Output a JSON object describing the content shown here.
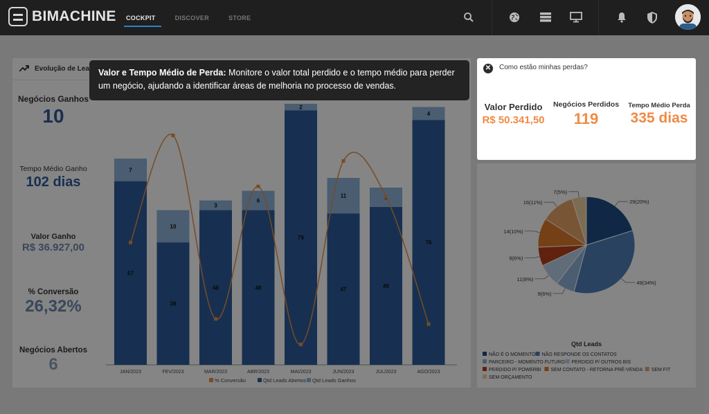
{
  "brand": {
    "name": "BIMACHINE"
  },
  "nav": [
    {
      "label": "COCKPIT",
      "active": true
    },
    {
      "label": "DISCOVER",
      "active": false
    },
    {
      "label": "STORE",
      "active": false
    }
  ],
  "dashboard": {
    "title": "Evolução de Leads",
    "kpis": [
      {
        "label": "Negócios Ganhos",
        "value": "10"
      },
      {
        "label": "Tempo Médio Ganho",
        "value": "102 dias"
      },
      {
        "label": "Valor Ganho",
        "value": "R$ 36.927,00"
      },
      {
        "label": "% Conversão",
        "value": "26,32%"
      },
      {
        "label": "Negócios Abertos",
        "value": "6"
      }
    ]
  },
  "tooltip": {
    "title": "Valor e Tempo Médio de Perda:",
    "body": "Monitore o valor total perdido e o tempo médio para perder um negócio, ajudando a identificar áreas de melhoria no processo de vendas."
  },
  "losses": {
    "question": "Como estão minhas perdas?",
    "items": [
      {
        "label": "Valor Perdido",
        "value": "R$ 50.341,50"
      },
      {
        "label": "Negócios Perdidos",
        "value": "119"
      },
      {
        "label": "Tempo Médio Perda",
        "value": "335 dias"
      }
    ]
  },
  "colors": {
    "abertos": "#2c5d9b",
    "ganhos": "#8fb3d9",
    "conversao": "#e4914a",
    "accent": "#ef8a45"
  },
  "chart_data": [
    {
      "type": "bar",
      "categories": [
        "JAN/2023",
        "FEV/2023",
        "MAR/2023",
        "ABR/2023",
        "MAI/2023",
        "JUN/2023",
        "JUL/2023",
        "AGO/2023"
      ],
      "series": [
        {
          "name": "Qtd Leads Abertos",
          "values": [
            57,
            38,
            48,
            48,
            79,
            47,
            49,
            76
          ]
        },
        {
          "name": "Qtd Leads Ganhos",
          "values": [
            7,
            10,
            3,
            6,
            2,
            11,
            6,
            4
          ]
        },
        {
          "name": "% Conversão",
          "values": [
            24,
            45,
            9,
            35,
            4,
            40,
            33,
            8
          ]
        }
      ],
      "legend": "bottom"
    },
    {
      "type": "pie",
      "title": "Qtd Leads",
      "slices": [
        {
          "name": "NÃO É O MOMENTO",
          "value": 29,
          "label": "29(20%)",
          "color": "#1f4e86"
        },
        {
          "name": "NÃO RESPONDE OS CONTATOS",
          "value": 49,
          "label": "49(34%)",
          "color": "#4f7fb8"
        },
        {
          "name": "PARCEIRO - MOMENTO FUTURO",
          "value": 9,
          "label": "9(6%)",
          "color": "#8fb3d9"
        },
        {
          "name": "PERDIDO P/ OUTROS BIS",
          "value": 11,
          "label": "11(8%)",
          "color": "#b9cfe7"
        },
        {
          "name": "PERDIDO P/ POWERBI",
          "value": 9,
          "label": "9(6%)",
          "color": "#b8401a"
        },
        {
          "name": "SEM CONTATO - RETORNA PRÉ-VENDA",
          "value": 14,
          "label": "14(10%)",
          "color": "#e07b2a"
        },
        {
          "name": "SEM FIT",
          "value": 16,
          "label": "16(11%)",
          "color": "#e6a466"
        },
        {
          "name": "SEM ORÇAMENTO",
          "value": 7,
          "label": "7(5%)",
          "color": "#f0cfa2"
        }
      ],
      "legend": "bottom"
    }
  ]
}
